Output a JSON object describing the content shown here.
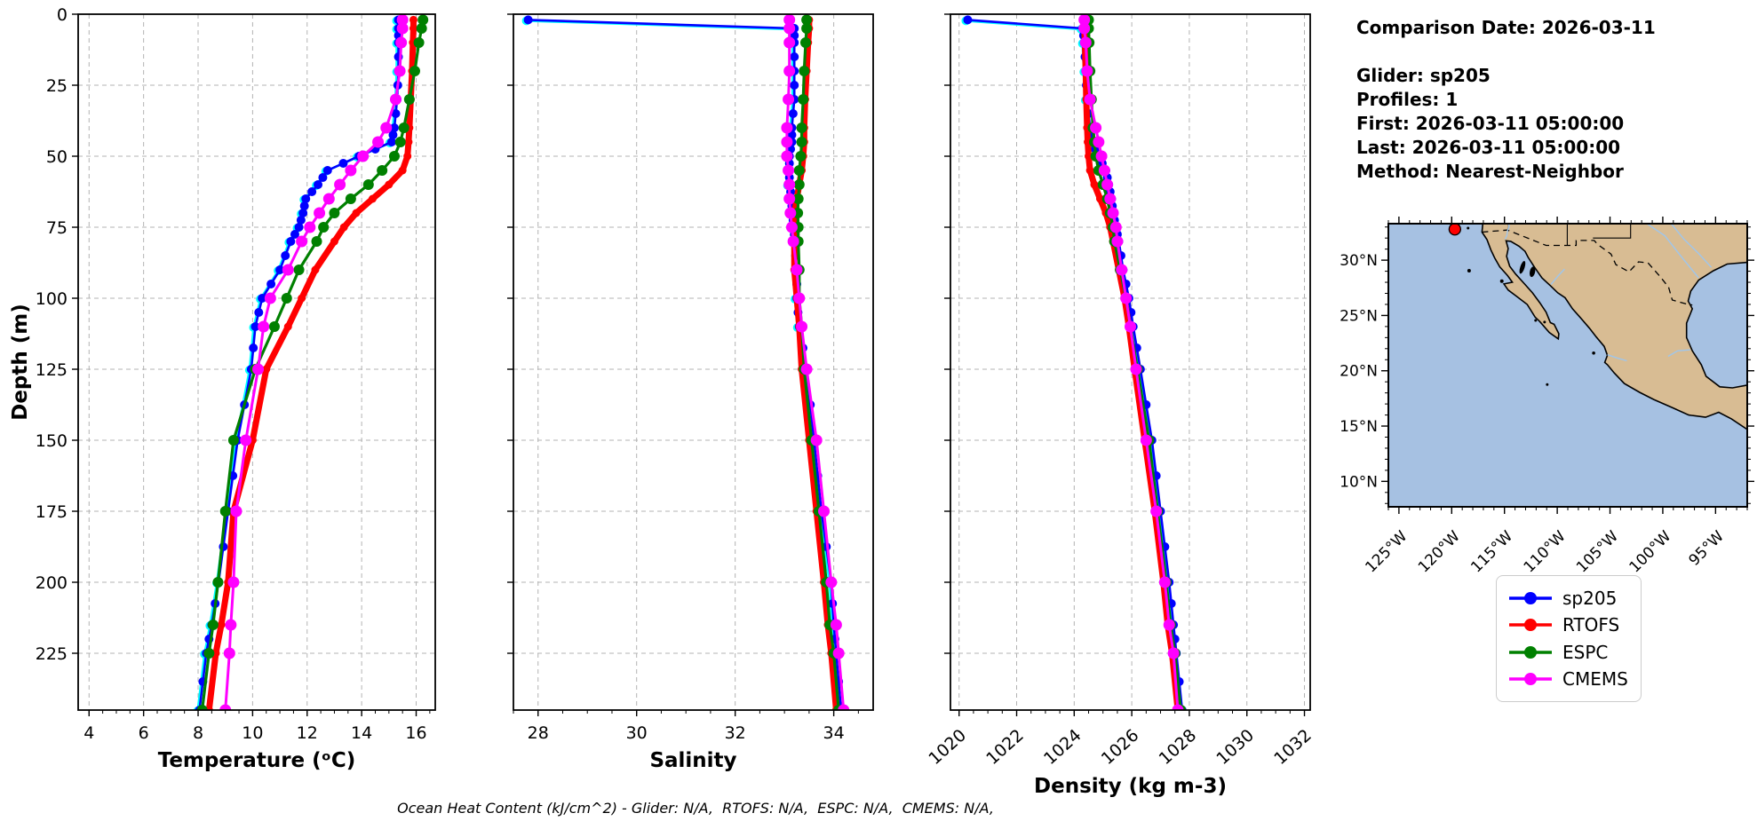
{
  "figure": {
    "background": "#ffffff",
    "footer_text": "Ocean Heat Content (kJ/cm^2) - Glider: N/A,  RTOFS: N/A,  ESPC: N/A,  CMEMS: N/A,"
  },
  "info_panel": {
    "lines": [
      "Comparison Date: 2026-03-11",
      "",
      "Glider: sp205",
      "Profiles: 1",
      "First: 2026-03-11 05:00:00",
      "Last: 2026-03-11 05:00:00",
      "Method: Nearest-Neighbor"
    ]
  },
  "legend": {
    "items": [
      {
        "label": "sp205",
        "color": "#0000ff"
      },
      {
        "label": "RTOFS",
        "color": "#ff0000"
      },
      {
        "label": "ESPC",
        "color": "#008000"
      },
      {
        "label": "CMEMS",
        "color": "#ff00ff"
      }
    ]
  },
  "chart_data": {
    "type": "line",
    "subtype": "ocean-profile-comparison",
    "depth_axis": {
      "label": "Depth (m)",
      "range": [
        0,
        245
      ],
      "ticks": [
        0,
        25,
        50,
        75,
        100,
        125,
        150,
        175,
        200,
        225
      ]
    },
    "grid": true,
    "depths": [
      2,
      5,
      10,
      20,
      30,
      40,
      45,
      50,
      55,
      60,
      65,
      70,
      75,
      80,
      90,
      100,
      110,
      125,
      150,
      175,
      200,
      215,
      225,
      245
    ],
    "panels": [
      {
        "id": "temperature",
        "xlabel": "Temperature (ᵒC)",
        "xlim": [
          3.6,
          16.7
        ],
        "xticks": [
          4,
          6,
          8,
          10,
          12,
          14,
          16
        ],
        "minor_step": 0.5,
        "rotate_xticklabels": false,
        "series": [
          {
            "name": "sp205",
            "color": "#0000ff",
            "shadow_color": "#00ffff",
            "line_width": 2.6,
            "marker_size": 5,
            "dense_markers": true,
            "values": [
              15.35,
              15.35,
              15.35,
              15.35,
              15.3,
              15.2,
              15.1,
              13.9,
              12.75,
              12.4,
              11.95,
              11.85,
              11.7,
              11.4,
              11.0,
              10.35,
              10.1,
              9.95,
              9.45,
              9.1,
              8.75,
              8.5,
              8.3,
              8.05
            ]
          },
          {
            "name": "RTOFS",
            "color": "#ff0000",
            "line_width": 7,
            "marker_size": 4.5,
            "values": [
              15.9,
              15.9,
              15.88,
              15.85,
              15.8,
              15.75,
              15.72,
              15.68,
              15.5,
              15.0,
              14.4,
              13.8,
              13.35,
              13.0,
              12.3,
              11.8,
              11.3,
              10.5,
              10.0,
              9.3,
              9.1,
              8.85,
              8.65,
              8.4
            ]
          },
          {
            "name": "ESPC",
            "color": "#008000",
            "line_width": 3.2,
            "marker_size": 6,
            "values": [
              16.25,
              16.2,
              16.1,
              15.95,
              15.75,
              15.55,
              15.42,
              15.2,
              14.75,
              14.25,
              13.6,
              13.0,
              12.6,
              12.35,
              11.7,
              11.25,
              10.8,
              10.1,
              9.3,
              9.0,
              8.73,
              8.55,
              8.4,
              8.15
            ]
          },
          {
            "name": "CMEMS",
            "color": "#ff00ff",
            "line_width": 3,
            "marker_size": 6.5,
            "values": [
              15.5,
              15.5,
              15.45,
              15.4,
              15.25,
              14.9,
              14.6,
              14.05,
              13.6,
              13.2,
              12.8,
              12.45,
              12.1,
              11.8,
              11.3,
              10.65,
              10.4,
              10.2,
              9.75,
              9.4,
              9.3,
              9.2,
              9.15,
              9.0
            ]
          }
        ]
      },
      {
        "id": "salinity",
        "xlabel": "Salinity",
        "xlim": [
          27.5,
          34.8
        ],
        "xticks": [
          28,
          30,
          32,
          34
        ],
        "minor_step": 0.5,
        "rotate_xticklabels": false,
        "series": [
          {
            "name": "sp205",
            "color": "#0000ff",
            "shadow_color": "#00ffff",
            "line_width": 2.6,
            "marker_size": 5,
            "dense_markers": true,
            "values": [
              27.8,
              33.2,
              33.2,
              33.2,
              33.2,
              33.15,
              33.15,
              33.1,
              33.1,
              33.1,
              33.15,
              33.15,
              33.2,
              33.2,
              33.25,
              33.25,
              33.3,
              33.45,
              33.6,
              33.75,
              33.95,
              34.0,
              34.05,
              34.15
            ]
          },
          {
            "name": "RTOFS",
            "color": "#ff0000",
            "line_width": 7,
            "marker_size": 4.5,
            "values": [
              33.5,
              33.5,
              33.48,
              33.45,
              33.42,
              33.4,
              33.4,
              33.38,
              33.35,
              33.3,
              33.25,
              33.2,
              33.2,
              33.2,
              33.2,
              33.25,
              33.3,
              33.35,
              33.5,
              33.65,
              33.8,
              33.88,
              33.95,
              34.05
            ]
          },
          {
            "name": "ESPC",
            "color": "#008000",
            "line_width": 3.2,
            "marker_size": 6,
            "values": [
              33.45,
              33.45,
              33.43,
              33.4,
              33.38,
              33.35,
              33.35,
              33.33,
              33.3,
              33.3,
              33.28,
              33.27,
              33.28,
              33.28,
              33.3,
              33.3,
              33.35,
              33.4,
              33.55,
              33.7,
              33.85,
              33.92,
              34.0,
              34.1
            ]
          },
          {
            "name": "CMEMS",
            "color": "#ff00ff",
            "line_width": 3,
            "marker_size": 6.5,
            "values": [
              33.1,
              33.1,
              33.1,
              33.1,
              33.08,
              33.05,
              33.05,
              33.05,
              33.08,
              33.1,
              33.1,
              33.12,
              33.15,
              33.18,
              33.25,
              33.3,
              33.35,
              33.45,
              33.65,
              33.8,
              33.95,
              34.05,
              34.1,
              34.2
            ]
          }
        ]
      },
      {
        "id": "density",
        "xlabel": "Density (kg m-3)",
        "xlim": [
          1019.7,
          1032.2
        ],
        "xticks": [
          1020,
          1022,
          1024,
          1026,
          1028,
          1030,
          1032
        ],
        "minor_step": 0.5,
        "rotate_xticklabels": true,
        "series": [
          {
            "name": "sp205",
            "color": "#0000ff",
            "shadow_color": "#00ffff",
            "line_width": 2.6,
            "marker_size": 5,
            "dense_markers": true,
            "values": [
              1020.3,
              1024.3,
              1024.35,
              1024.4,
              1024.45,
              1024.55,
              1024.6,
              1024.85,
              1025.1,
              1025.2,
              1025.3,
              1025.35,
              1025.45,
              1025.55,
              1025.7,
              1025.9,
              1026.05,
              1026.3,
              1026.7,
              1027.0,
              1027.3,
              1027.45,
              1027.55,
              1027.75
            ]
          },
          {
            "name": "RTOFS",
            "color": "#ff0000",
            "line_width": 7,
            "marker_size": 4.5,
            "values": [
              1024.35,
              1024.35,
              1024.37,
              1024.4,
              1024.42,
              1024.45,
              1024.47,
              1024.5,
              1024.55,
              1024.7,
              1024.9,
              1025.1,
              1025.25,
              1025.35,
              1025.55,
              1025.75,
              1025.9,
              1026.1,
              1026.45,
              1026.8,
              1027.1,
              1027.25,
              1027.4,
              1027.6
            ]
          },
          {
            "name": "ESPC",
            "color": "#008000",
            "line_width": 3.2,
            "marker_size": 6,
            "values": [
              1024.5,
              1024.5,
              1024.52,
              1024.55,
              1024.6,
              1024.65,
              1024.7,
              1024.75,
              1024.85,
              1025.0,
              1025.15,
              1025.25,
              1025.35,
              1025.4,
              1025.6,
              1025.8,
              1025.95,
              1026.2,
              1026.6,
              1026.9,
              1027.2,
              1027.35,
              1027.5,
              1027.7
            ]
          },
          {
            "name": "CMEMS",
            "color": "#ff00ff",
            "line_width": 3,
            "marker_size": 6.5,
            "values": [
              1024.35,
              1024.35,
              1024.4,
              1024.45,
              1024.55,
              1024.75,
              1024.85,
              1024.95,
              1025.05,
              1025.15,
              1025.25,
              1025.35,
              1025.45,
              1025.5,
              1025.65,
              1025.8,
              1025.95,
              1026.15,
              1026.5,
              1026.85,
              1027.15,
              1027.3,
              1027.45,
              1027.6
            ]
          }
        ]
      }
    ]
  },
  "map": {
    "extent": {
      "lon": [
        -126,
        -92
      ],
      "lat": [
        7.7,
        33.3
      ]
    },
    "xticks": {
      "values": [
        -125,
        -120,
        -115,
        -110,
        -105,
        -100,
        -95
      ],
      "labels": [
        "125°W",
        "120°W",
        "115°W",
        "110°W",
        "105°W",
        "100°W",
        "95°W"
      ]
    },
    "yticks": {
      "values": [
        30,
        25,
        20,
        15,
        10
      ],
      "labels": [
        "30°N",
        "25°N",
        "20°N",
        "15°N",
        "10°N"
      ]
    },
    "glider_marker": {
      "lon": -119.7,
      "lat": 32.8,
      "color": "#ff0000"
    },
    "colors": {
      "ocean": "#a6c1e2",
      "land": "#d8bc93",
      "coast": "#000000",
      "river": "#9fc6ec"
    }
  }
}
